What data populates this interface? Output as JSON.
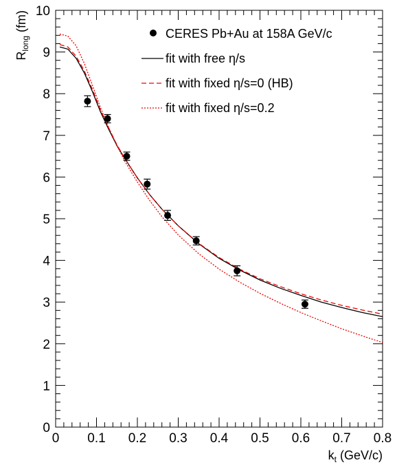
{
  "chart_data": {
    "type": "scatter",
    "xlabel": {
      "main": "k",
      "sub": "t",
      "unit": " (GeV/c)"
    },
    "ylabel": {
      "main": "R",
      "sub": "long",
      "unit": " (fm)"
    },
    "xlim": [
      0,
      0.8
    ],
    "ylim": [
      0,
      10
    ],
    "x_ticks": [
      "0",
      "0.1",
      "0.2",
      "0.3",
      "0.4",
      "0.5",
      "0.6",
      "0.7",
      "0.8"
    ],
    "y_ticks": [
      "0",
      "1",
      "2",
      "3",
      "4",
      "5",
      "6",
      "7",
      "8",
      "9",
      "10"
    ],
    "grid": false,
    "legend_position": "top-right",
    "series": [
      {
        "name": "CERES Pb+Au at 158A GeV/c",
        "kind": "points",
        "color": "#000000",
        "x": [
          0.078,
          0.127,
          0.174,
          0.224,
          0.274,
          0.344,
          0.444,
          0.61
        ],
        "y": [
          7.82,
          7.4,
          6.5,
          5.83,
          5.08,
          4.47,
          3.75,
          2.95
        ],
        "yerr": [
          0.13,
          0.1,
          0.1,
          0.12,
          0.12,
          0.1,
          0.12,
          0.1
        ]
      },
      {
        "name": "fit with free η/s",
        "kind": "line",
        "style": "solid",
        "color": "#000000",
        "x": [
          0.01,
          0.03,
          0.05,
          0.07,
          0.09,
          0.11,
          0.13,
          0.15,
          0.17,
          0.2,
          0.23,
          0.26,
          0.3,
          0.35,
          0.4,
          0.45,
          0.5,
          0.55,
          0.6,
          0.65,
          0.7,
          0.75,
          0.8
        ],
        "y": [
          9.12,
          9.07,
          8.85,
          8.5,
          8.05,
          7.56,
          7.14,
          6.75,
          6.43,
          5.98,
          5.58,
          5.23,
          4.83,
          4.4,
          4.05,
          3.77,
          3.53,
          3.33,
          3.16,
          3.0,
          2.87,
          2.75,
          2.65
        ]
      },
      {
        "name": "fit with fixed η/s=0 (HB)",
        "kind": "line",
        "style": "dashed",
        "color": "#ee0000",
        "x": [
          0.01,
          0.03,
          0.05,
          0.07,
          0.09,
          0.11,
          0.13,
          0.15,
          0.17,
          0.2,
          0.23,
          0.26,
          0.3,
          0.35,
          0.4,
          0.45,
          0.5,
          0.55,
          0.6,
          0.65,
          0.7,
          0.75,
          0.8
        ],
        "y": [
          9.18,
          9.12,
          8.9,
          8.55,
          8.1,
          7.6,
          7.17,
          6.77,
          6.44,
          5.98,
          5.58,
          5.23,
          4.83,
          4.41,
          4.07,
          3.79,
          3.56,
          3.37,
          3.2,
          3.05,
          2.92,
          2.81,
          2.71
        ]
      },
      {
        "name": "fit with fixed η/s=0.2",
        "kind": "line",
        "style": "dotted",
        "color": "#ee0000",
        "x": [
          0.01,
          0.03,
          0.05,
          0.07,
          0.09,
          0.11,
          0.13,
          0.15,
          0.17,
          0.2,
          0.23,
          0.26,
          0.3,
          0.35,
          0.4,
          0.45,
          0.5,
          0.55,
          0.6,
          0.65,
          0.7,
          0.75,
          0.8
        ],
        "y": [
          9.43,
          9.38,
          9.15,
          8.73,
          8.2,
          7.66,
          7.18,
          6.75,
          6.37,
          5.88,
          5.44,
          5.05,
          4.61,
          4.16,
          3.79,
          3.48,
          3.21,
          2.97,
          2.75,
          2.55,
          2.36,
          2.19,
          2.03
        ]
      }
    ]
  }
}
